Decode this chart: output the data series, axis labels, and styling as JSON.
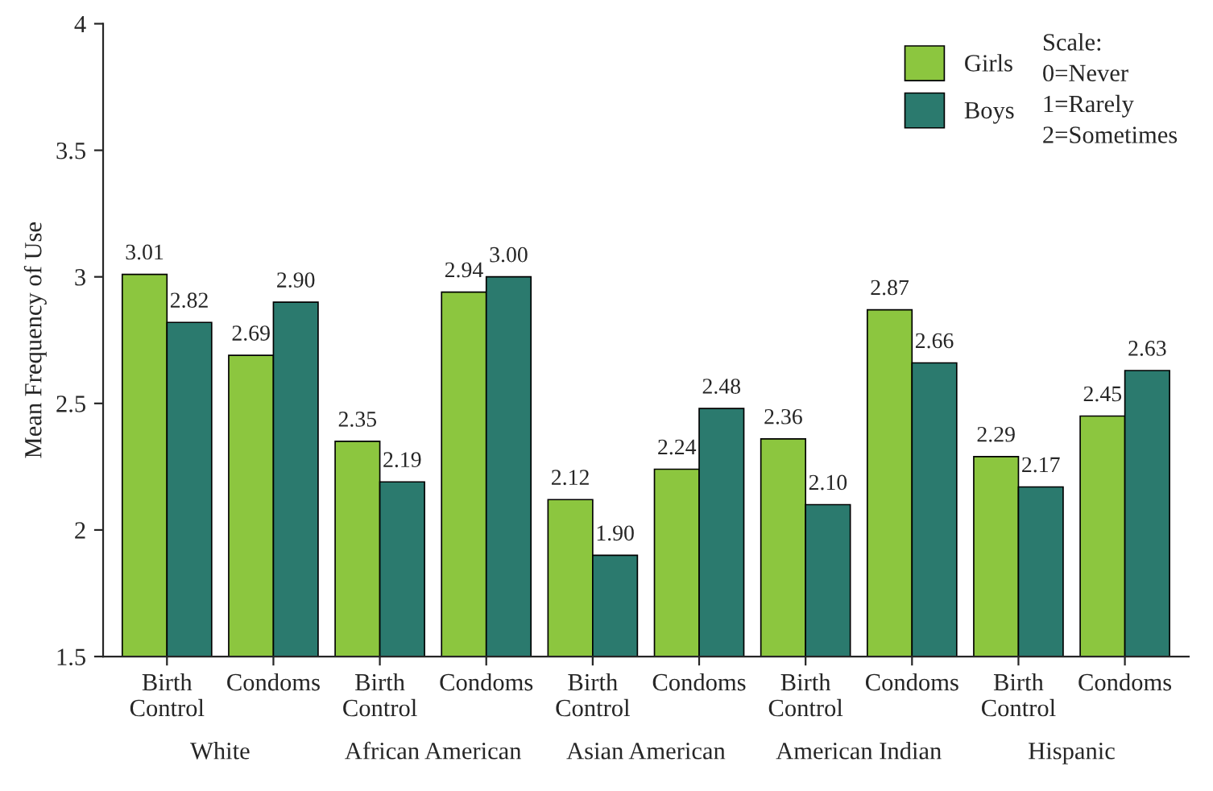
{
  "chart_data": {
    "type": "bar",
    "ylabel": "Mean Frequency of Use",
    "categories": [
      "Birth\nControl",
      "Condoms",
      "Birth\nControl",
      "Condoms",
      "Birth\nControl",
      "Condoms",
      "Birth\nControl",
      "Condoms",
      "Birth\nControl",
      "Condoms"
    ],
    "series": [
      {
        "name": "Girls",
        "color": "#8cc63f",
        "values": [
          3.01,
          2.69,
          2.35,
          2.94,
          2.12,
          2.24,
          2.36,
          2.87,
          2.29,
          2.45
        ],
        "value_labels": [
          "3.01",
          "2.69",
          "2.35",
          "2.94",
          "2.12",
          "2.24",
          "2.36",
          "2.87",
          "2.29",
          "2.45"
        ]
      },
      {
        "name": "Boys",
        "color": "#2b7a6e",
        "values": [
          2.82,
          2.9,
          2.19,
          3.0,
          1.9,
          2.48,
          2.1,
          2.66,
          2.17,
          2.63
        ],
        "value_labels": [
          "2.82",
          "2.90",
          "2.19",
          "3.00",
          "1.90",
          "2.48",
          "2.10",
          "2.66",
          "2.17",
          "2.63"
        ]
      }
    ],
    "ylim": [
      1.5,
      4
    ],
    "yticks": [
      1.5,
      2,
      2.5,
      3,
      3.5,
      4
    ],
    "annotations": [
      "White",
      "African American",
      "Asian American",
      "American Indian",
      "Hispanic",
      "Scale:\n0=Never\n1=Rarely\n2=Sometimes"
    ],
    "legend": "top right",
    "grid": false
  }
}
